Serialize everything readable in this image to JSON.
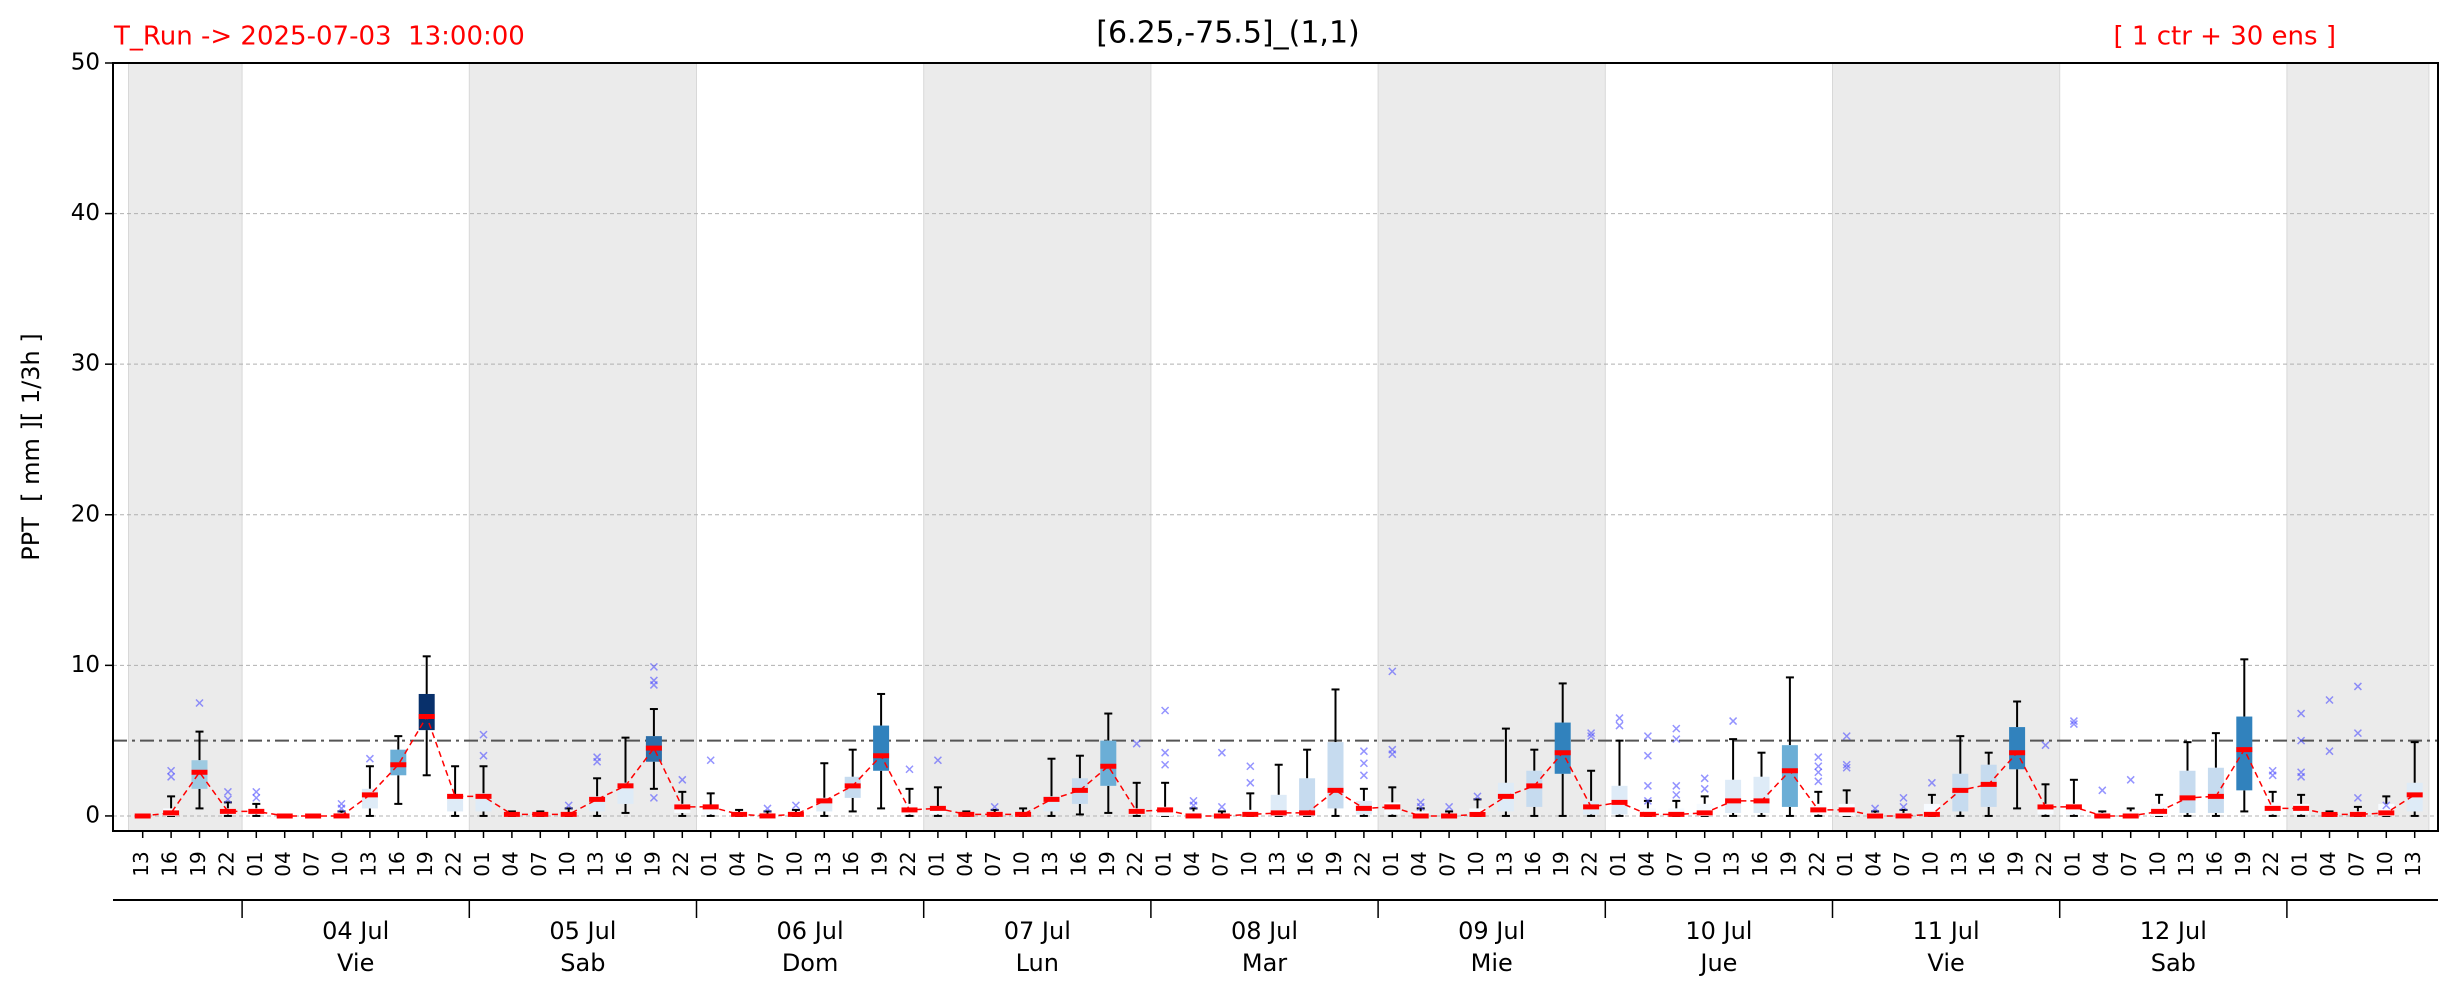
{
  "chart_data": {
    "type": "box",
    "title": "[6.25,-75.5]_(1,1)",
    "run_label": "T_Run -> 2025-07-03  13:00:00",
    "members_label": "[ 1 ctr + 30 ens ]",
    "y_label": "PPT  [ mm ][ 1/3h ]",
    "ylim": [
      -1,
      50
    ],
    "yticks": [
      0,
      10,
      20,
      30,
      40,
      50
    ],
    "grid": true,
    "ref_line": 5,
    "shade_alternate_days": true,
    "median_color": "#ff0000",
    "outlier_color": "#4d4dff",
    "categories": [
      "13",
      "16",
      "19",
      "22",
      "01",
      "04",
      "07",
      "10",
      "13",
      "16",
      "19",
      "22",
      "01",
      "04",
      "07",
      "10",
      "13",
      "16",
      "19",
      "22",
      "01",
      "04",
      "07",
      "10",
      "13",
      "16",
      "19",
      "22",
      "01",
      "04",
      "07",
      "10",
      "13",
      "16",
      "19",
      "22",
      "01",
      "04",
      "07",
      "10",
      "13",
      "16",
      "19",
      "22",
      "01",
      "04",
      "07",
      "10",
      "13",
      "16",
      "19",
      "22",
      "01",
      "04",
      "07",
      "10",
      "13",
      "16",
      "19",
      "22",
      "01",
      "04",
      "07",
      "10",
      "13",
      "16",
      "19",
      "22",
      "01",
      "04",
      "07",
      "10",
      "13",
      "16",
      "19",
      "22",
      "01",
      "04",
      "07",
      "10",
      "13"
    ],
    "day_labels": [
      null,
      "04 Jul",
      "05 Jul",
      "06 Jul",
      "07 Jul",
      "08 Jul",
      "09 Jul",
      "10 Jul",
      "11 Jul",
      "12 Jul",
      null
    ],
    "weekday_labels": [
      null,
      "Vie",
      "Sab",
      "Dom",
      "Lun",
      "Mar",
      "Mie",
      "Jue",
      "Vie",
      "Sab",
      null
    ],
    "median": [
      0,
      0.2,
      2.9,
      0.3,
      0.3,
      0,
      0,
      0,
      1.4,
      3.4,
      6.6,
      1.3,
      1.3,
      0.1,
      0.1,
      0.1,
      1.1,
      2.0,
      4.5,
      0.6,
      0.6,
      0.1,
      0,
      0.1,
      1.0,
      2.0,
      4.0,
      0.4,
      0.5,
      0.1,
      0.1,
      0.1,
      1.1,
      1.7,
      3.3,
      0.3,
      0.4,
      0,
      0,
      0.1,
      0.2,
      0.2,
      1.7,
      0.5,
      0.6,
      0,
      0,
      0.1,
      1.3,
      2.0,
      4.2,
      0.6,
      0.9,
      0.1,
      0.1,
      0.2,
      1.0,
      1.0,
      3.0,
      0.4,
      0.4,
      0,
      0,
      0.1,
      1.7,
      2.1,
      4.2,
      0.6,
      0.6,
      0,
      0,
      0.3,
      1.2,
      1.3,
      4.4,
      0.5,
      0.5,
      0.1,
      0.1,
      0.2,
      1.4
    ],
    "q1": [
      0,
      0,
      1.8,
      0.1,
      0.1,
      0,
      0,
      0,
      0.5,
      2.7,
      5.7,
      0.3,
      0.3,
      0,
      0,
      0,
      0.3,
      0.8,
      3.6,
      0.2,
      0.1,
      0,
      0,
      0,
      0.3,
      1.2,
      3.0,
      0.1,
      0.1,
      0,
      0,
      0,
      0.3,
      0.8,
      2.0,
      0.1,
      0,
      0,
      0,
      0,
      0,
      0,
      0.5,
      0.1,
      0.1,
      0,
      0,
      0,
      0.3,
      0.6,
      2.8,
      0.1,
      0.1,
      0,
      0,
      0,
      0.2,
      0.2,
      0.6,
      0.1,
      0,
      0,
      0,
      0,
      0.3,
      0.6,
      3.1,
      0.1,
      0.1,
      0,
      0,
      0,
      0.2,
      0.2,
      1.7,
      0.1,
      0.1,
      0,
      0,
      0,
      0.3
    ],
    "q3": [
      0,
      0.5,
      3.7,
      0.5,
      0.5,
      0,
      0,
      0.2,
      1.8,
      4.4,
      8.1,
      1.3,
      1.5,
      0.2,
      0.2,
      0.2,
      1.3,
      2.2,
      5.3,
      0.8,
      0.7,
      0.2,
      0.1,
      0.2,
      1.2,
      2.6,
      6.0,
      0.8,
      0.5,
      0.2,
      0.2,
      0.2,
      1.3,
      2.5,
      5.0,
      0.5,
      0.6,
      0.3,
      0.1,
      0.4,
      1.4,
      2.5,
      4.9,
      1.0,
      0.9,
      0.3,
      0.1,
      0.5,
      2.2,
      3.0,
      6.2,
      1.0,
      2.0,
      0.5,
      0.5,
      0.8,
      2.4,
      2.6,
      4.7,
      0.8,
      0.8,
      0.2,
      0.2,
      0.8,
      2.8,
      3.4,
      5.9,
      0.8,
      0.8,
      0.2,
      0.3,
      0.8,
      3.0,
      3.2,
      6.6,
      0.9,
      0.8,
      0.2,
      0.3,
      0.8,
      2.2
    ],
    "whisker_low": [
      0,
      0,
      0.5,
      0,
      0,
      0,
      0,
      0,
      0,
      0.8,
      2.7,
      0,
      0,
      0,
      0,
      0,
      0,
      0.2,
      1.8,
      0,
      0,
      0,
      0,
      0,
      0,
      0.3,
      0.5,
      0,
      0,
      0,
      0,
      0,
      0,
      0.1,
      0.2,
      0,
      0,
      0,
      0,
      0,
      0,
      0,
      0,
      0,
      0,
      0,
      0,
      0,
      0,
      0,
      0,
      0,
      0,
      0,
      0,
      0,
      0,
      0,
      0,
      0,
      0,
      0,
      0,
      0,
      0,
      0,
      0.5,
      0,
      0,
      0,
      0,
      0,
      0,
      0,
      0.3,
      0,
      0,
      0,
      0,
      0,
      0
    ],
    "whisker_high": [
      0,
      1.3,
      5.6,
      0.9,
      0.8,
      0,
      0,
      0.3,
      3.3,
      5.3,
      10.6,
      3.3,
      3.3,
      0.3,
      0.3,
      0.5,
      2.5,
      5.2,
      7.1,
      1.6,
      1.5,
      0.4,
      0.3,
      0.4,
      3.5,
      4.4,
      8.1,
      1.8,
      1.9,
      0.3,
      0.4,
      0.5,
      3.8,
      4.0,
      6.8,
      2.2,
      2.2,
      0.5,
      0.3,
      1.5,
      3.4,
      4.4,
      8.4,
      1.8,
      1.9,
      0.5,
      0.3,
      1.1,
      5.8,
      4.4,
      8.8,
      3.0,
      5.0,
      1.0,
      1.0,
      1.3,
      5.1,
      4.2,
      9.2,
      1.6,
      1.7,
      0.3,
      0.4,
      1.4,
      5.3,
      4.2,
      7.6,
      2.1,
      2.4,
      0.3,
      0.5,
      1.4,
      4.9,
      5.5,
      10.4,
      1.6,
      1.4,
      0.3,
      0.6,
      1.3,
      4.9
    ],
    "outliers": [
      [],
      [
        2.6,
        3.0
      ],
      [
        7.5
      ],
      [
        1.1,
        1.6
      ],
      [
        1.2,
        1.6
      ],
      [],
      [],
      [
        0.5,
        0.8
      ],
      [
        3.8
      ],
      [],
      [],
      [],
      [
        4.0,
        5.4
      ],
      [],
      [],
      [
        0.7
      ],
      [
        3.6,
        3.9
      ],
      [],
      [
        8.7,
        9.0,
        9.9,
        1.2
      ],
      [
        2.4
      ],
      [
        3.7
      ],
      [],
      [
        0.5
      ],
      [
        0.7
      ],
      [],
      [],
      [],
      [
        3.1
      ],
      [
        3.7
      ],
      [],
      [
        0.6
      ],
      [],
      [],
      [],
      [],
      [
        4.8
      ],
      [
        7.0,
        4.2,
        3.4
      ],
      [
        1.0,
        0.7
      ],
      [
        4.2,
        0.6
      ],
      [
        3.3,
        2.2
      ],
      [],
      [],
      [],
      [
        4.3,
        3.5,
        2.7
      ],
      [
        9.6,
        4.4,
        4.1
      ],
      [
        0.9,
        0.6
      ],
      [
        0.6
      ],
      [
        1.3
      ],
      [],
      [],
      [],
      [
        5.3,
        5.5
      ],
      [
        6.5,
        6.0
      ],
      [
        5.3,
        4.0,
        2.0,
        1.0
      ],
      [
        5.8,
        5.1,
        2.0,
        1.4
      ],
      [
        2.5,
        1.8
      ],
      [
        6.3
      ],
      [],
      [],
      [
        3.9,
        3.3,
        2.9,
        2.3
      ],
      [
        5.3,
        3.4,
        3.2
      ],
      [
        0.5
      ],
      [
        1.2,
        0.6
      ],
      [
        2.2
      ],
      [],
      [],
      [],
      [
        4.7
      ],
      [
        6.3,
        6.1
      ],
      [
        1.7
      ],
      [
        2.4
      ],
      [],
      [],
      [],
      [],
      [
        3.0,
        2.7
      ],
      [
        6.8,
        5.0,
        2.9,
        2.6
      ],
      [
        7.7,
        4.3
      ],
      [
        8.6,
        5.5,
        1.2
      ],
      [
        0.7
      ],
      []
    ],
    "box_colors": [
      "#f7fbff",
      "#f7fbff",
      "#9ecae1",
      "#f7fbff",
      "#f7fbff",
      "#f7fbff",
      "#f7fbff",
      "#f7fbff",
      "#deebf7",
      "#6baed6",
      "#08306b",
      "#deebf7",
      "#deebf7",
      "#f7fbff",
      "#f7fbff",
      "#f7fbff",
      "#deebf7",
      "#deebf7",
      "#2c6ea8",
      "#f7fbff",
      "#f7fbff",
      "#f7fbff",
      "#f7fbff",
      "#f7fbff",
      "#deebf7",
      "#c6dbef",
      "#3182bd",
      "#f7fbff",
      "#f7fbff",
      "#f7fbff",
      "#f7fbff",
      "#f7fbff",
      "#deebf7",
      "#c6dbef",
      "#6baed6",
      "#f7fbff",
      "#f7fbff",
      "#f7fbff",
      "#f7fbff",
      "#f7fbff",
      "#deebf7",
      "#c6dbef",
      "#c6dbef",
      "#deebf7",
      "#f7fbff",
      "#f7fbff",
      "#f7fbff",
      "#f7fbff",
      "#deebf7",
      "#c6dbef",
      "#3182bd",
      "#deebf7",
      "#deebf7",
      "#f7fbff",
      "#f7fbff",
      "#f7fbff",
      "#deebf7",
      "#deebf7",
      "#6baed6",
      "#f7fbff",
      "#f7fbff",
      "#f7fbff",
      "#f7fbff",
      "#f7fbff",
      "#c6dbef",
      "#c6dbef",
      "#3182bd",
      "#f7fbff",
      "#f7fbff",
      "#f7fbff",
      "#f7fbff",
      "#f7fbff",
      "#c6dbef",
      "#c6dbef",
      "#3182bd",
      "#f7fbff",
      "#f7fbff",
      "#f7fbff",
      "#f7fbff",
      "#f7fbff",
      "#deebf7"
    ]
  }
}
